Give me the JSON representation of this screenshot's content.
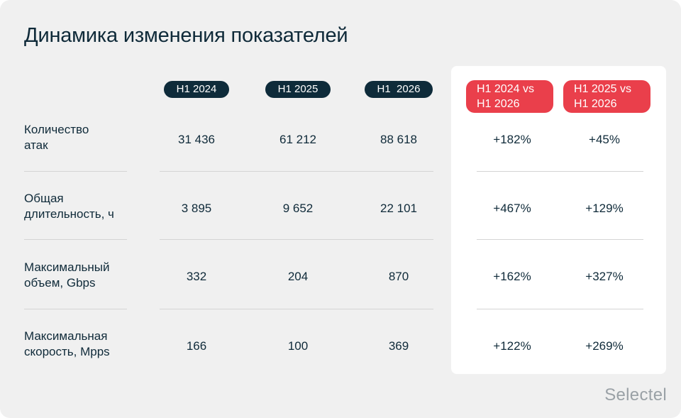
{
  "title": "Динамика изменения показателей",
  "chart_data": {
    "type": "table",
    "title": "Динамика изменения показателей",
    "columns": [
      "H1 2024",
      "H1 2025",
      "H1  2026",
      "H1 2024 vs\nH1 2026",
      "H1 2025 vs\nH1 2026"
    ],
    "rows": [
      {
        "label": "Количество\nатак",
        "values": [
          "31 436",
          "61 212",
          "88 618",
          "+182%",
          "+45%"
        ]
      },
      {
        "label": "Общая\nдлительность, ч",
        "values": [
          "3 895",
          "9 652",
          "22 101",
          "+467%",
          "+129%"
        ]
      },
      {
        "label": "Максимальный\nобъем, Gbps",
        "values": [
          "332",
          "204",
          "870",
          "+162%",
          "+327%"
        ]
      },
      {
        "label": "Максимальная\nскорость, Mpps",
        "values": [
          "166",
          "100",
          "369",
          "+122%",
          "+269%"
        ]
      }
    ]
  },
  "brand": {
    "logo_text": "Selectel",
    "accent_color": "#ea3f4b",
    "header_pill_color": "#0e2b3a"
  }
}
